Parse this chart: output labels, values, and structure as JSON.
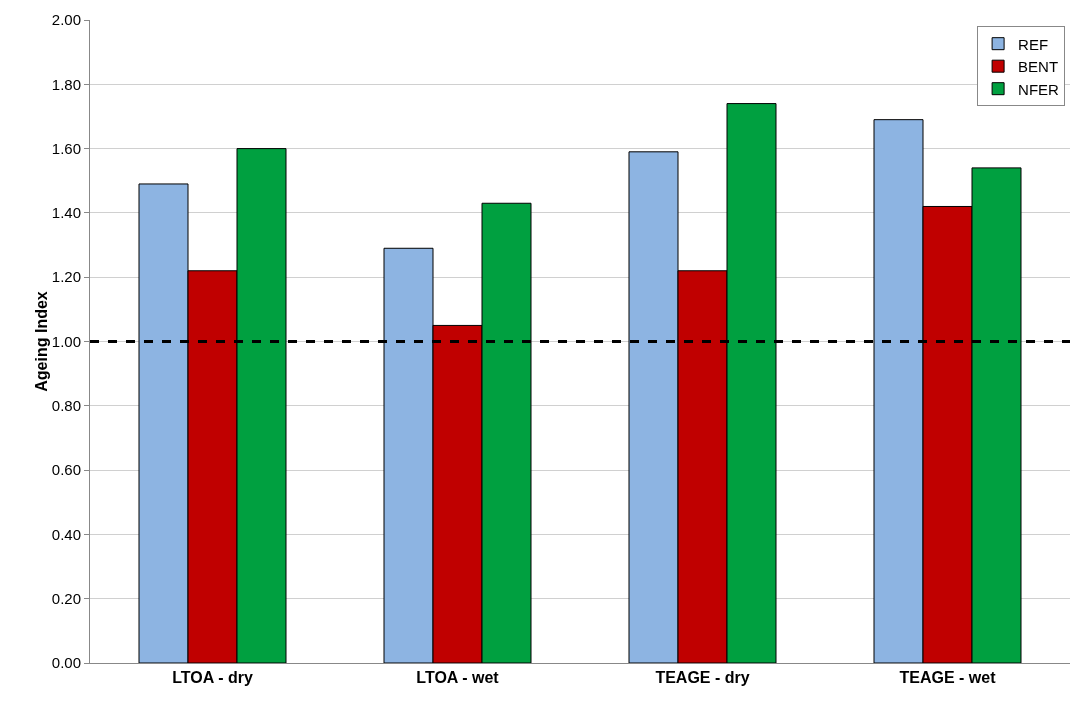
{
  "chart_data": {
    "type": "bar",
    "ylabel": "Ageing Index",
    "categories": [
      "LTOA - dry",
      "LTOA - wet",
      "TEAGE - dry",
      "TEAGE - wet"
    ],
    "series": [
      {
        "name": "REF",
        "color": "#8db4e2",
        "values": [
          1.49,
          1.29,
          1.59,
          1.69
        ]
      },
      {
        "name": "BENT",
        "color": "#c00000",
        "values": [
          1.22,
          1.05,
          1.22,
          1.42
        ]
      },
      {
        "name": "NFER",
        "color": "#00a040",
        "values": [
          1.6,
          1.43,
          1.74,
          1.54
        ]
      }
    ],
    "ylim": [
      0,
      2
    ],
    "yticks": [
      {
        "value": 0,
        "label": "0.00"
      },
      {
        "value": 0.2,
        "label": "0.20"
      },
      {
        "value": 0.4,
        "label": "0.40"
      },
      {
        "value": 0.6,
        "label": "0.60"
      },
      {
        "value": 0.8,
        "label": "0.80"
      },
      {
        "value": 1,
        "label": "1.00"
      },
      {
        "value": 1.2,
        "label": "1.20"
      },
      {
        "value": 1.4,
        "label": "1.40"
      },
      {
        "value": 1.6,
        "label": "1.60"
      },
      {
        "value": 1.8,
        "label": "1.80"
      },
      {
        "value": 2,
        "label": "2.00"
      }
    ],
    "grid": "y",
    "legend": "top right",
    "ref_lines": [
      {
        "axis": "y",
        "value": 1,
        "color": "#000000",
        "line_style": "dashed"
      }
    ]
  }
}
